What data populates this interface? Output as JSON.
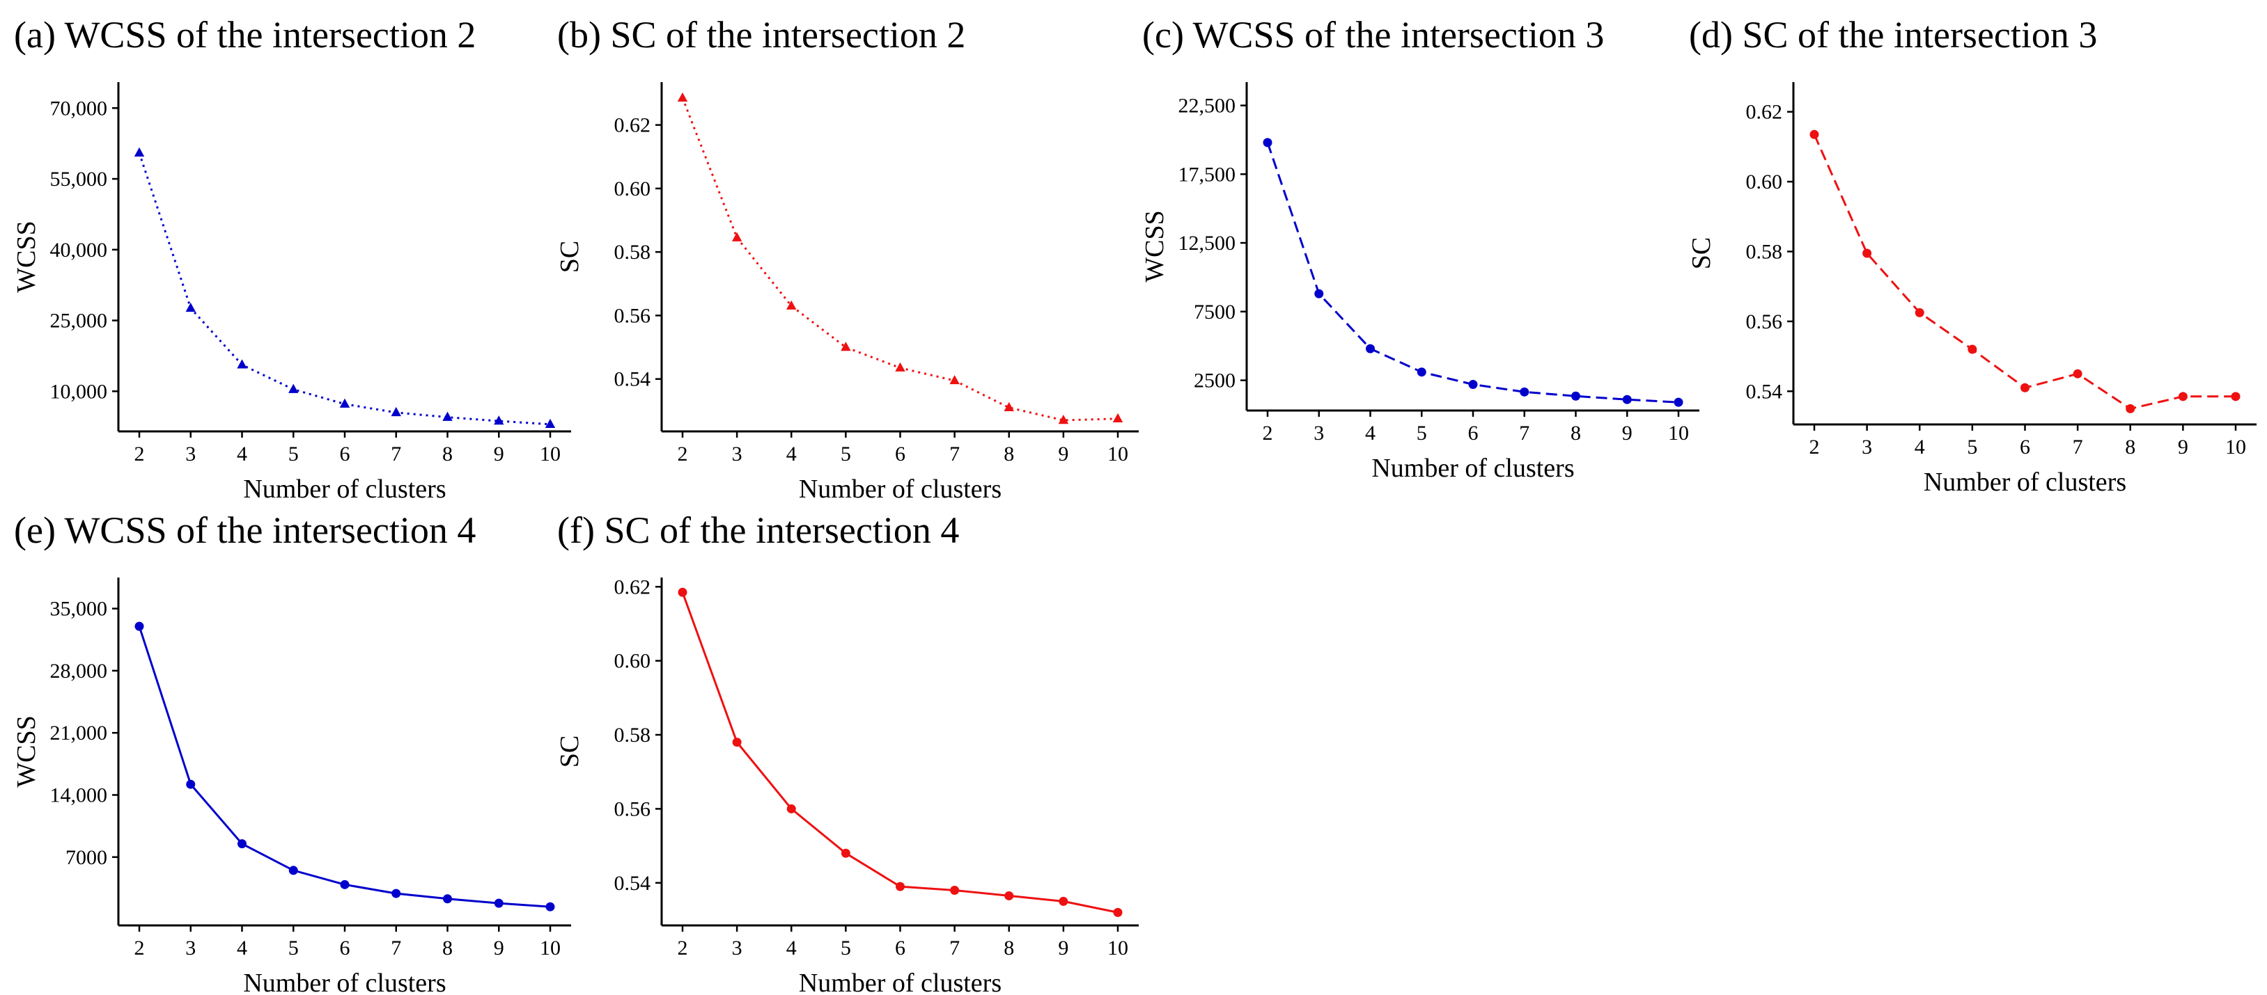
{
  "chart_data": [
    {
      "id": "a",
      "type": "line",
      "title": "(a) WCSS of the intersection 2",
      "xlabel": "Number of clusters",
      "ylabel": "WCSS",
      "x": [
        2,
        3,
        4,
        5,
        6,
        7,
        8,
        9,
        10
      ],
      "yticks": [
        10000,
        25000,
        40000,
        55000,
        70000
      ],
      "ytick_labels": [
        "10,000",
        "25,000",
        "40,000",
        "55,000",
        "70,000"
      ],
      "ylim": [
        1500,
        75500
      ],
      "series": [
        {
          "name": "WCSS",
          "values": [
            60500,
            27600,
            15600,
            10400,
            7300,
            5500,
            4500,
            3700,
            3000
          ]
        }
      ],
      "color": "#0000cc",
      "line_style": "dotted",
      "marker": "triangle"
    },
    {
      "id": "b",
      "type": "line",
      "title": "(b) SC of  the intersection 2",
      "xlabel": "Number of clusters",
      "ylabel": "SC",
      "x": [
        2,
        3,
        4,
        5,
        6,
        7,
        8,
        9,
        10
      ],
      "yticks": [
        0.54,
        0.56,
        0.58,
        0.6,
        0.62
      ],
      "ytick_labels": [
        "0.54",
        "0.56",
        "0.58",
        "0.60",
        "0.62"
      ],
      "ylim": [
        0.5235,
        0.6335
      ],
      "series": [
        {
          "name": "SC",
          "values": [
            0.6285,
            0.5845,
            0.563,
            0.55,
            0.5435,
            0.5395,
            0.531,
            0.527,
            0.5275
          ]
        }
      ],
      "color": "#ee1111",
      "line_style": "dotted",
      "marker": "triangle"
    },
    {
      "id": "c",
      "type": "line",
      "title": "(c) WCSS of the intersection 3",
      "xlabel": "Number of clusters",
      "ylabel": "WCSS",
      "x": [
        2,
        3,
        4,
        5,
        6,
        7,
        8,
        9,
        10
      ],
      "yticks": [
        2500,
        7500,
        12500,
        17500,
        22500
      ],
      "ytick_labels": [
        "2500",
        "7500",
        "12,500",
        "17,500",
        "22,500"
      ],
      "ylim": [
        300,
        24200
      ],
      "series": [
        {
          "name": "WCSS",
          "values": [
            19800,
            8800,
            4800,
            3100,
            2200,
            1650,
            1350,
            1100,
            900
          ]
        }
      ],
      "color": "#0000cc",
      "line_style": "dashed",
      "marker": "circle"
    },
    {
      "id": "d",
      "type": "line",
      "title": "(d) SC of the intersection 3",
      "xlabel": "Number of clusters",
      "ylabel": "SC",
      "x": [
        2,
        3,
        4,
        5,
        6,
        7,
        8,
        9,
        10
      ],
      "yticks": [
        0.54,
        0.56,
        0.58,
        0.6,
        0.62
      ],
      "ytick_labels": [
        "0.54",
        "0.56",
        "0.58",
        "0.60",
        "0.62"
      ],
      "ylim": [
        0.5305,
        0.6285
      ],
      "series": [
        {
          "name": "SC",
          "values": [
            0.6135,
            0.5795,
            0.5625,
            0.552,
            0.541,
            0.545,
            0.535,
            0.5385,
            0.5385
          ]
        }
      ],
      "color": "#ee1111",
      "line_style": "dashed",
      "marker": "circle"
    },
    {
      "id": "e",
      "type": "line",
      "title": "(e) WCSS of the intersection 4",
      "xlabel": "Number of clusters",
      "ylabel": "WCSS",
      "x": [
        2,
        3,
        4,
        5,
        6,
        7,
        8,
        9,
        10
      ],
      "yticks": [
        7000,
        14000,
        21000,
        28000,
        35000
      ],
      "ytick_labels": [
        "7000",
        "14,000",
        "21,000",
        "28,000",
        "35,000"
      ],
      "ylim": [
        -700,
        38500
      ],
      "series": [
        {
          "name": "WCSS",
          "values": [
            33000,
            15200,
            8500,
            5500,
            3900,
            2900,
            2300,
            1800,
            1400
          ]
        }
      ],
      "color": "#0000cc",
      "line_style": "solid",
      "marker": "circle"
    },
    {
      "id": "f",
      "type": "line",
      "title": "(f) SC of the intersection 4",
      "xlabel": "Number of clusters",
      "ylabel": "SC",
      "x": [
        2,
        3,
        4,
        5,
        6,
        7,
        8,
        9,
        10
      ],
      "yticks": [
        0.54,
        0.56,
        0.58,
        0.6,
        0.62
      ],
      "ytick_labels": [
        "0.54",
        "0.56",
        "0.58",
        "0.60",
        "0.62"
      ],
      "ylim": [
        0.5285,
        0.6225
      ],
      "series": [
        {
          "name": "SC",
          "values": [
            0.6185,
            0.578,
            0.56,
            0.548,
            0.539,
            0.538,
            0.5365,
            0.535,
            0.532
          ]
        }
      ],
      "color": "#ee1111",
      "line_style": "solid",
      "marker": "circle"
    }
  ]
}
